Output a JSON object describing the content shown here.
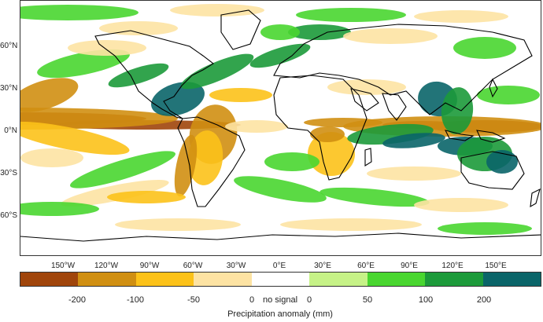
{
  "map": {
    "lat_labels": [
      "60°N",
      "30°N",
      "0°N",
      "30°S",
      "60°S"
    ],
    "lon_labels": [
      "150°W",
      "120°W",
      "90°W",
      "60°W",
      "30°W",
      "0°E",
      "30°E",
      "60°E",
      "90°E",
      "120°E",
      "150°E"
    ]
  },
  "colorbar": {
    "title": "Precipitation anomaly (mm)",
    "labels": [
      "-200",
      "-100",
      "-50",
      "0",
      "no signal",
      "0",
      "50",
      "100",
      "200"
    ],
    "colors": [
      "#a0450b",
      "#d08f12",
      "#fcc219",
      "#fde3a3",
      "#ffffff",
      "#c6f287",
      "#49d630",
      "#1c9a3a",
      "#0a6569"
    ]
  },
  "palette": {
    "ocean": "#ffffff",
    "coast": "#000000"
  }
}
